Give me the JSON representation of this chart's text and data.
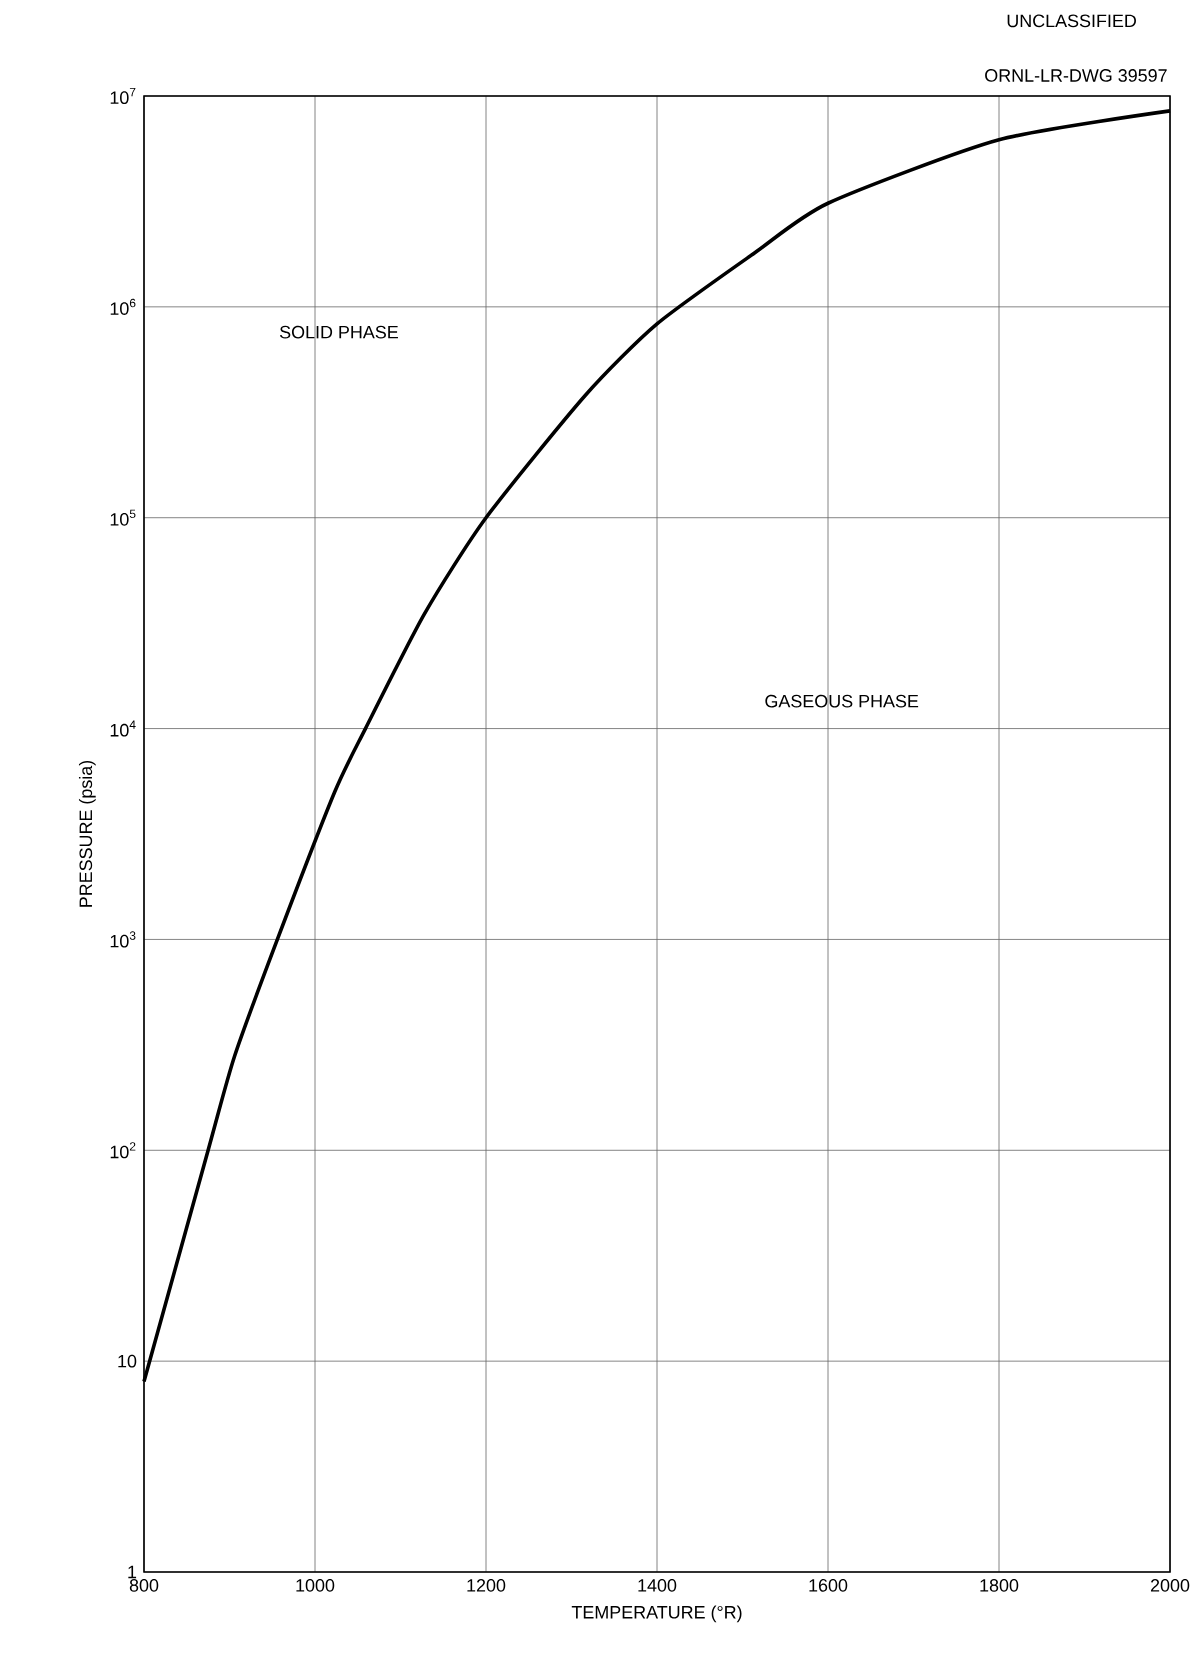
{
  "chart_data": {
    "type": "line",
    "log": "y",
    "grid": true,
    "marker": "none",
    "line_style": "solid",
    "xlabel": "TEMPERATURE (°R)",
    "ylabel": "PRESSURE (psia)",
    "annotations": [
      "UNCLASSIFIED",
      "ORNL-LR-DWG 39597",
      "SOLID PHASE",
      "GASEOUS PHASE"
    ],
    "xlim": [
      800,
      2000
    ],
    "xticks": [
      800,
      1000,
      1200,
      1400,
      1600,
      1800,
      2000
    ],
    "ylim": [
      1,
      10000000
    ],
    "yticks": [
      1,
      10,
      {
        "value": 100,
        "label": "10$^{2}$"
      },
      {
        "value": 1000,
        "label": "10$^{3}$"
      },
      {
        "value": 10000,
        "label": "10$^{4}$"
      },
      {
        "value": 100000,
        "label": "10$^{5}$"
      },
      {
        "value": 1000000,
        "label": "10$^{6}$"
      },
      {
        "value": 10000000,
        "label": "10$^{7}$"
      }
    ],
    "x": [
      800,
      875,
      906,
      956,
      1023,
      1059,
      1128,
      1200,
      1316,
      1400,
      1514,
      1600,
      1800,
      2000
    ],
    "series": [
      {
        "color": "#000000",
        "values": [
          8,
          100,
          280,
          1000,
          5000,
          10000,
          35000,
          100000,
          380000,
          830000,
          1800000,
          3100000,
          6200000,
          8500000
        ]
      }
    ]
  }
}
